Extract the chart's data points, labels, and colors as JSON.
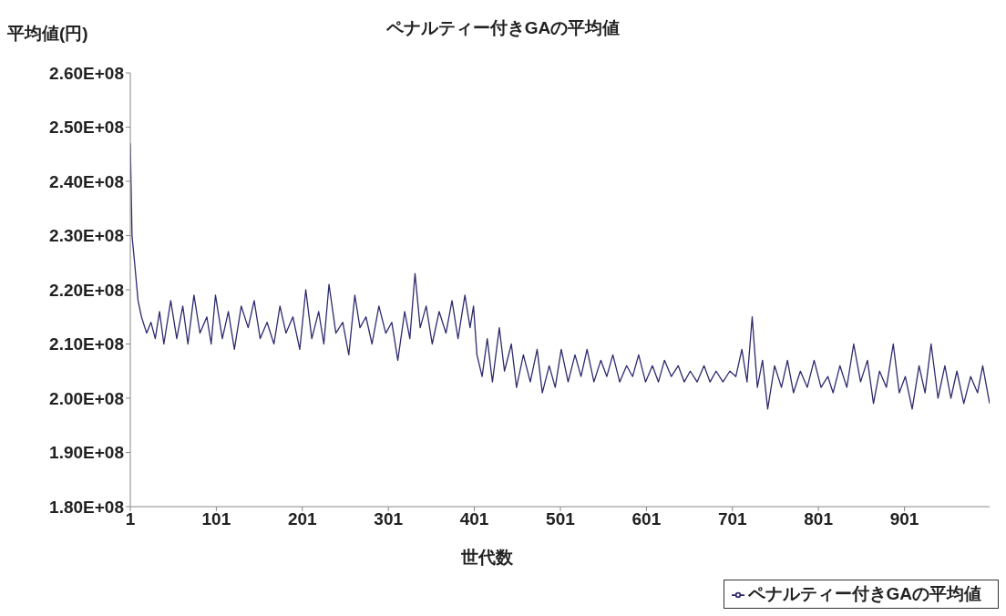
{
  "chart_data": {
    "type": "line",
    "title": "ペナルティー付きGAの平均値",
    "xlabel": "世代数",
    "ylabel": "平均値(円)",
    "x": [
      1,
      3,
      6,
      10,
      14,
      20,
      25,
      30,
      35,
      40,
      48,
      55,
      62,
      68,
      75,
      82,
      90,
      95,
      100,
      108,
      115,
      122,
      130,
      138,
      145,
      152,
      160,
      168,
      175,
      182,
      190,
      198,
      205,
      212,
      220,
      226,
      232,
      240,
      248,
      255,
      262,
      268,
      275,
      282,
      290,
      298,
      305,
      312,
      320,
      326,
      332,
      338,
      345,
      352,
      360,
      368,
      375,
      382,
      390,
      396,
      400,
      404,
      410,
      416,
      422,
      430,
      436,
      444,
      450,
      458,
      466,
      474,
      480,
      488,
      495,
      502,
      510,
      518,
      525,
      532,
      540,
      548,
      555,
      562,
      570,
      578,
      585,
      592,
      600,
      608,
      615,
      622,
      630,
      638,
      645,
      652,
      660,
      668,
      675,
      682,
      690,
      698,
      705,
      712,
      718,
      724,
      730,
      736,
      742,
      750,
      758,
      765,
      772,
      780,
      788,
      796,
      804,
      812,
      818,
      826,
      834,
      842,
      850,
      858,
      865,
      872,
      880,
      888,
      895,
      902,
      910,
      918,
      925,
      932,
      940,
      948,
      955,
      962,
      970,
      978,
      986,
      992,
      1000
    ],
    "series": [
      {
        "name": "ペナルティー付きGAの平均値",
        "color": "#2e2a6e",
        "values": [
          247000000,
          230000000,
          225000000,
          218000000,
          215000000,
          212000000,
          214000000,
          211000000,
          216000000,
          210000000,
          218000000,
          211000000,
          217000000,
          210000000,
          219000000,
          212000000,
          215000000,
          210000000,
          219000000,
          211000000,
          216000000,
          209000000,
          217000000,
          213000000,
          218000000,
          211000000,
          214000000,
          210000000,
          217000000,
          212000000,
          215000000,
          209000000,
          220000000,
          211000000,
          216000000,
          210000000,
          221000000,
          212000000,
          214000000,
          208000000,
          219000000,
          213000000,
          215000000,
          210000000,
          217000000,
          212000000,
          214000000,
          207000000,
          216000000,
          211000000,
          223000000,
          213000000,
          217000000,
          210000000,
          216000000,
          212000000,
          218000000,
          211000000,
          219000000,
          213000000,
          217000000,
          208000000,
          204000000,
          211000000,
          203000000,
          213000000,
          205000000,
          210000000,
          202000000,
          208000000,
          203000000,
          209000000,
          201000000,
          206000000,
          202000000,
          209000000,
          203000000,
          208000000,
          204000000,
          209000000,
          203000000,
          207000000,
          204000000,
          208000000,
          203000000,
          206000000,
          204000000,
          208000000,
          203000000,
          206000000,
          203000000,
          207000000,
          204000000,
          206000000,
          203000000,
          205000000,
          203000000,
          206000000,
          203000000,
          205000000,
          203000000,
          205000000,
          204000000,
          209000000,
          203000000,
          215000000,
          202000000,
          207000000,
          198000000,
          206000000,
          202000000,
          207000000,
          201000000,
          205000000,
          202000000,
          207000000,
          202000000,
          204000000,
          201000000,
          206000000,
          202000000,
          210000000,
          203000000,
          207000000,
          199000000,
          205000000,
          202000000,
          210000000,
          201000000,
          204000000,
          198000000,
          206000000,
          201000000,
          210000000,
          200000000,
          206000000,
          200000000,
          205000000,
          199000000,
          204000000,
          201000000,
          206000000,
          199000000
        ]
      }
    ],
    "xlim": [
      1,
      1000
    ],
    "xticks": [
      1,
      101,
      201,
      301,
      401,
      501,
      601,
      701,
      801,
      901
    ],
    "ylim": [
      180000000,
      260000000
    ],
    "yticks": [
      {
        "value": 180000000,
        "label": "1.80E+08"
      },
      {
        "value": 190000000,
        "label": "1.90E+08"
      },
      {
        "value": 200000000,
        "label": "2.00E+08"
      },
      {
        "value": 210000000,
        "label": "2.10E+08"
      },
      {
        "value": 220000000,
        "label": "2.20E+08"
      },
      {
        "value": 230000000,
        "label": "2.30E+08"
      },
      {
        "value": 240000000,
        "label": "2.40E+08"
      },
      {
        "value": 250000000,
        "label": "2.50E+08"
      },
      {
        "value": 260000000,
        "label": "2.60E+08"
      }
    ],
    "grid": false,
    "legend": "bottom right",
    "marker": "none",
    "line_style": "solid"
  }
}
